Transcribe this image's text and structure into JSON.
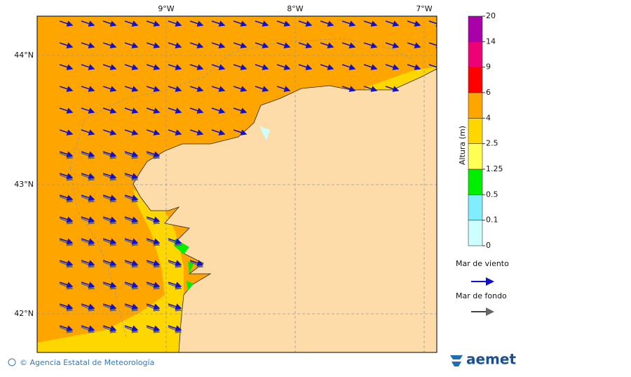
{
  "map": {
    "lon_labels": [
      "9°W",
      "8°W",
      "7°W"
    ],
    "lat_labels": [
      "44°N",
      "43°N",
      "42°N"
    ]
  },
  "colorbar": {
    "label": "Altura (m)",
    "levels": [
      0,
      0.1,
      0.5,
      1.25,
      2.5,
      4,
      6,
      9,
      14,
      20
    ],
    "colors": [
      "#ccffff",
      "#80eeff",
      "#00ee00",
      "#ffff55",
      "#ffd700",
      "#ffa500",
      "#ff0000",
      "#ee0077",
      "#aa00aa"
    ]
  },
  "legend": {
    "wind_sea": "Mar de viento",
    "swell": "Mar de fondo"
  },
  "footer": {
    "credit": "© Agencia Estatal de Meteorología",
    "logo": "aemet"
  }
}
